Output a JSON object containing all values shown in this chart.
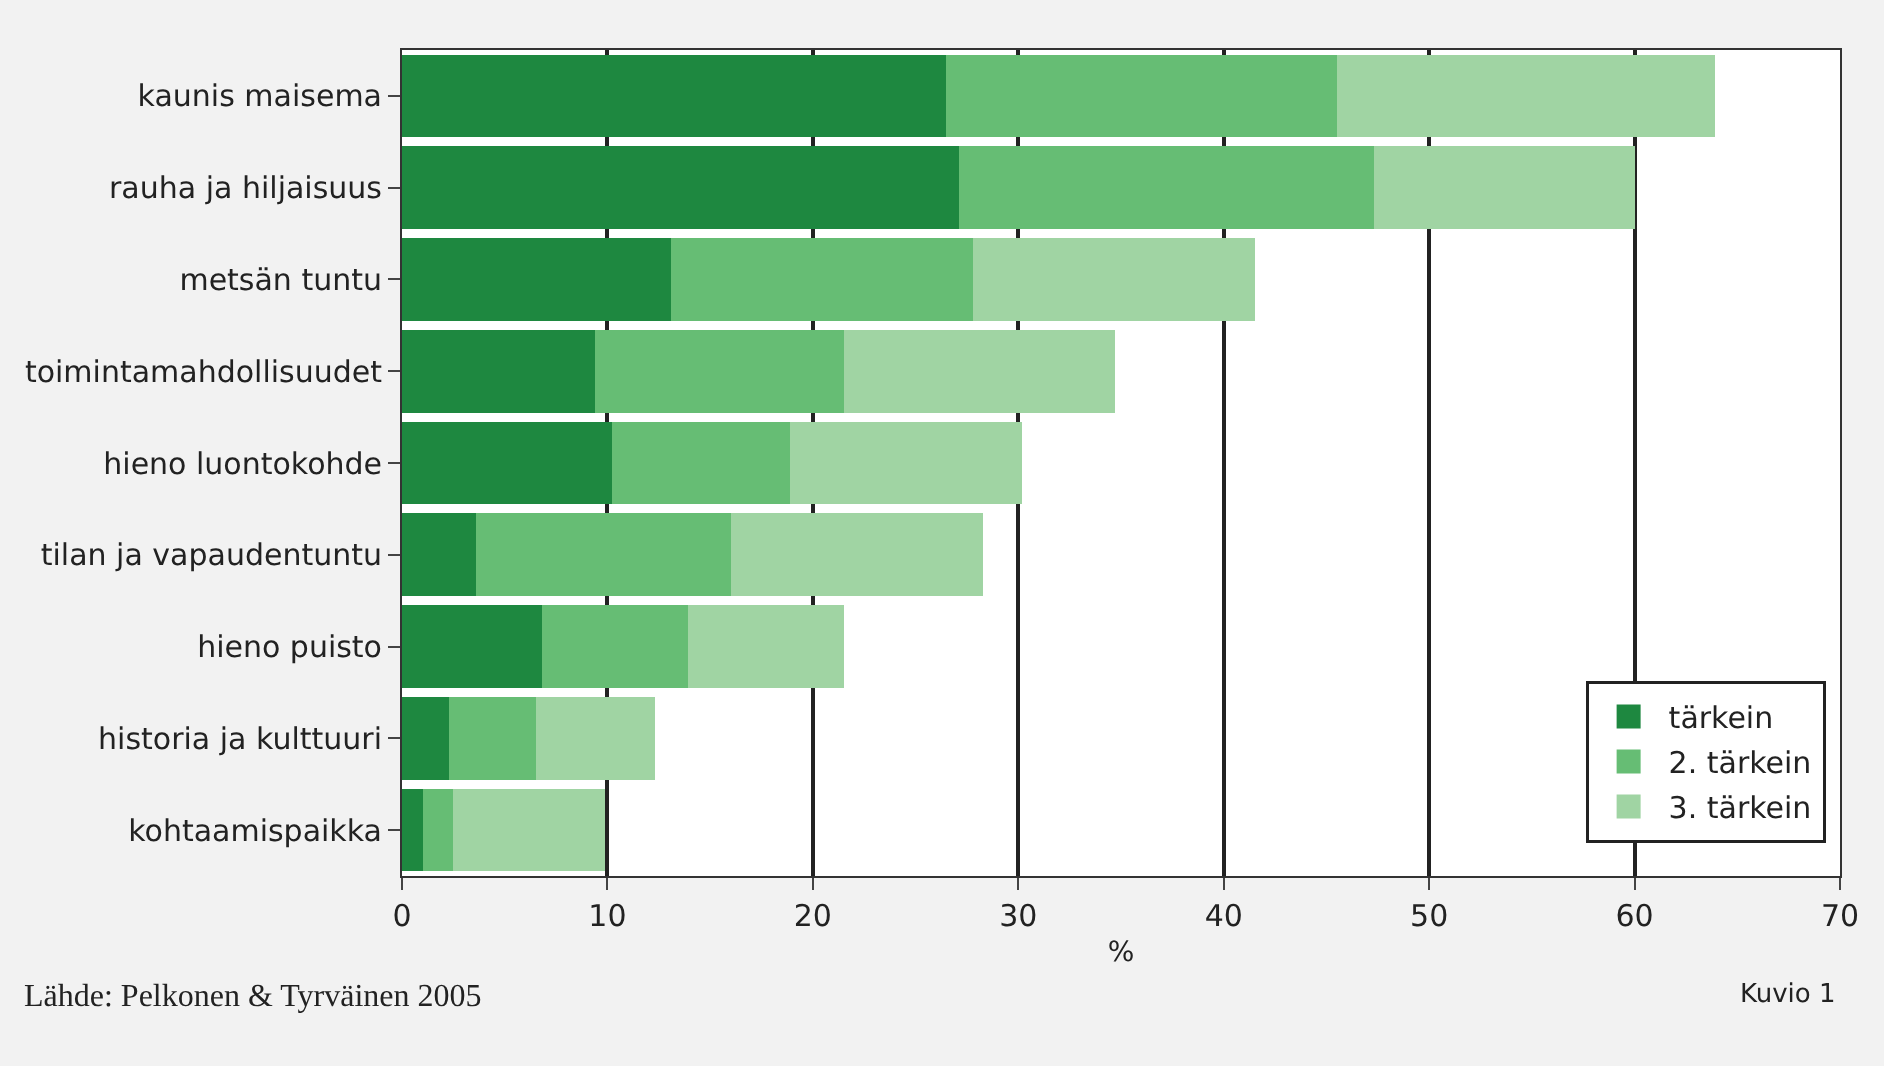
{
  "chart_data": {
    "type": "bar",
    "orientation": "horizontal",
    "stacked": true,
    "xlabel": "%",
    "categories": [
      "kaunis maisema",
      "rauha ja hiljaisuus",
      "metsän tuntu",
      "toimintamahdollisuudet",
      "hieno luontokohde",
      "tilan ja vapaudentuntu",
      "hieno puisto",
      "historia ja kulttuuri",
      "kohtaamispaikka"
    ],
    "series": [
      {
        "name": "tärkein",
        "color": "#1e8840",
        "values": [
          26.5,
          27.1,
          13.1,
          9.4,
          10.2,
          3.6,
          6.8,
          2.3,
          1.0
        ]
      },
      {
        "name": "2. tärkein",
        "color": "#66bd74",
        "values": [
          19.0,
          20.2,
          14.7,
          12.1,
          8.7,
          12.4,
          7.1,
          4.2,
          1.5
        ]
      },
      {
        "name": "3. tärkein",
        "color": "#a0d4a3",
        "values": [
          18.4,
          12.7,
          13.7,
          13.2,
          11.3,
          12.3,
          7.6,
          5.8,
          7.4
        ]
      }
    ],
    "xlim": [
      0,
      70
    ],
    "xticks": [
      0,
      10,
      20,
      30,
      40,
      50,
      60,
      70
    ],
    "grid": "x",
    "legend": "bottom right",
    "annotations": [
      "Lähde: Pelkonen & Tyrväinen 2005",
      "Kuvio 1"
    ]
  }
}
